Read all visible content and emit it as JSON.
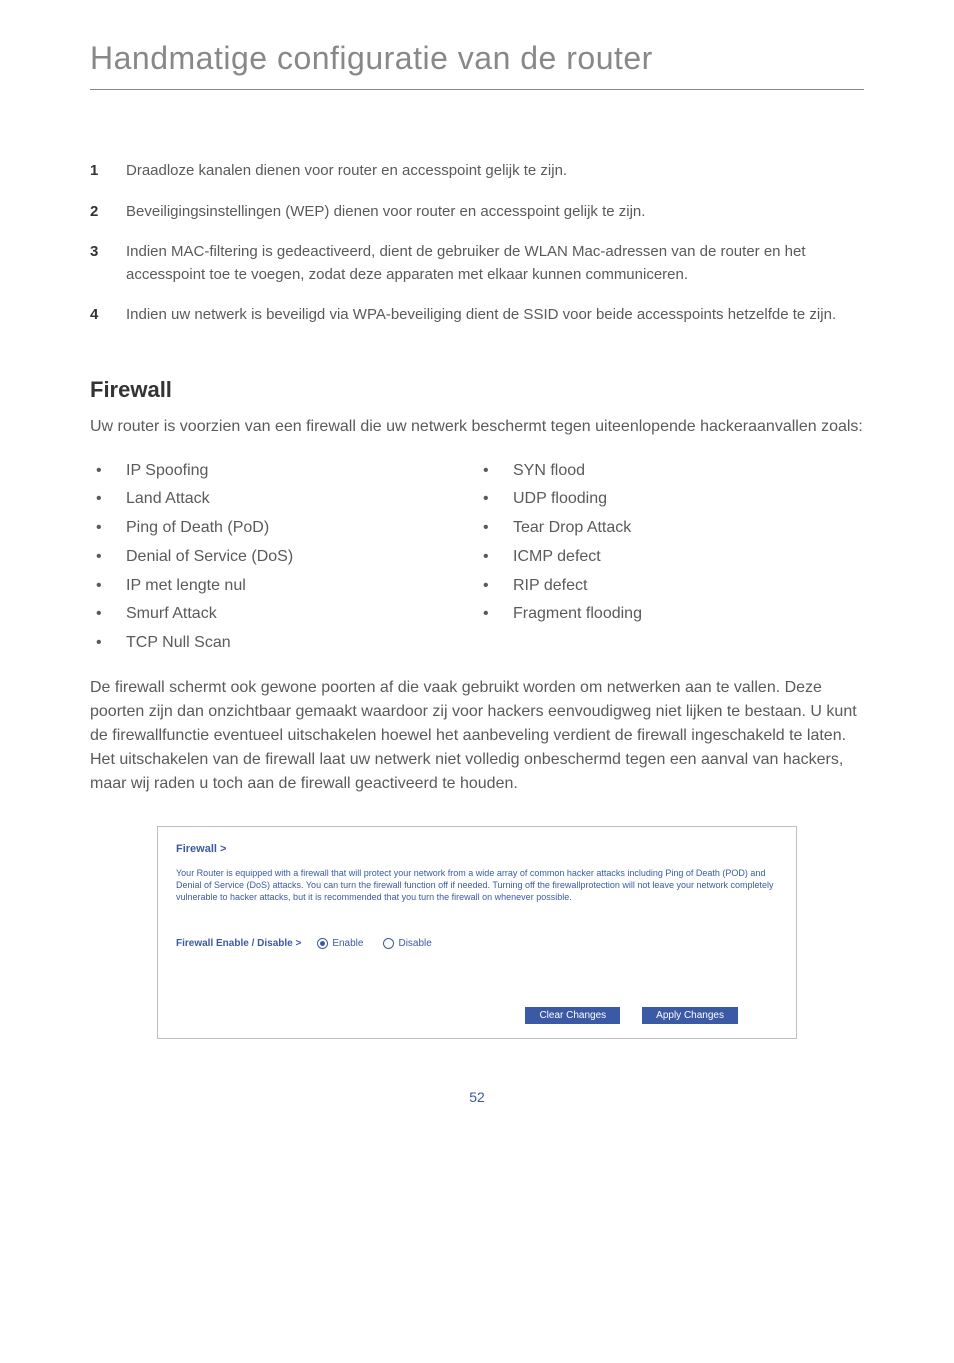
{
  "page": {
    "title": "Handmatige configuratie van de router",
    "number": "52"
  },
  "numbered": [
    {
      "n": "1",
      "t": "Draadloze kanalen dienen voor router en accesspoint gelijk te zijn."
    },
    {
      "n": "2",
      "t": "Beveiligingsinstellingen (WEP) dienen voor router en accesspoint gelijk te zijn."
    },
    {
      "n": "3",
      "t": "Indien MAC-filtering is gedeactiveerd, dient de gebruiker de WLAN Mac-adressen van de router en het accesspoint toe te voegen, zodat deze apparaten met elkaar kunnen communiceren."
    },
    {
      "n": "4",
      "t": "Indien uw netwerk is beveiligd via WPA-beveiliging dient de SSID voor beide accesspoints hetzelfde te zijn."
    }
  ],
  "firewall": {
    "heading": "Firewall",
    "intro": "Uw router is voorzien van een firewall die uw netwerk beschermt tegen uiteenlopende hackeraanvallen zoals:",
    "left": [
      "IP Spoofing",
      "Land Attack",
      "Ping of Death (PoD)",
      "Denial of Service (DoS)",
      "IP met lengte nul",
      "Smurf Attack",
      "TCP Null Scan"
    ],
    "right": [
      "SYN flood",
      "UDP flooding",
      "Tear Drop Attack",
      "ICMP defect",
      "RIP defect",
      "Fragment flooding"
    ],
    "body": "De firewall schermt ook gewone poorten af die vaak gebruikt worden om netwerken aan te vallen. Deze poorten zijn dan onzichtbaar gemaakt waardoor zij voor hackers eenvoudigweg niet lijken te bestaan. U kunt de firewallfunctie eventueel uitschakelen hoewel het aanbeveling verdient de firewall ingeschakeld te laten. Het uitschakelen van de firewall laat uw netwerk niet volledig onbeschermd tegen een aanval van hackers, maar wij raden u toch aan de firewall geactiveerd te houden."
  },
  "screenshot": {
    "title": "Firewall >",
    "paragraph": "Your Router is equipped with a firewall that will protect your network from a wide array of common hacker attacks including Ping of Death (POD) and Denial of Service (DoS) attacks. You can turn the firewall function off if needed. Turning off the firewallprotection will not leave your network completely vulnerable to hacker attacks, but it is recommended that you turn the firewall on whenever possible.",
    "row_label": "Firewall Enable / Disable >",
    "opt_enable": "Enable",
    "opt_disable": "Disable",
    "btn_clear": "Clear Changes",
    "btn_apply": "Apply Changes",
    "colors": {
      "brand_blue": "#3b5aa6",
      "border": "#bfbfbf",
      "white": "#ffffff"
    }
  }
}
